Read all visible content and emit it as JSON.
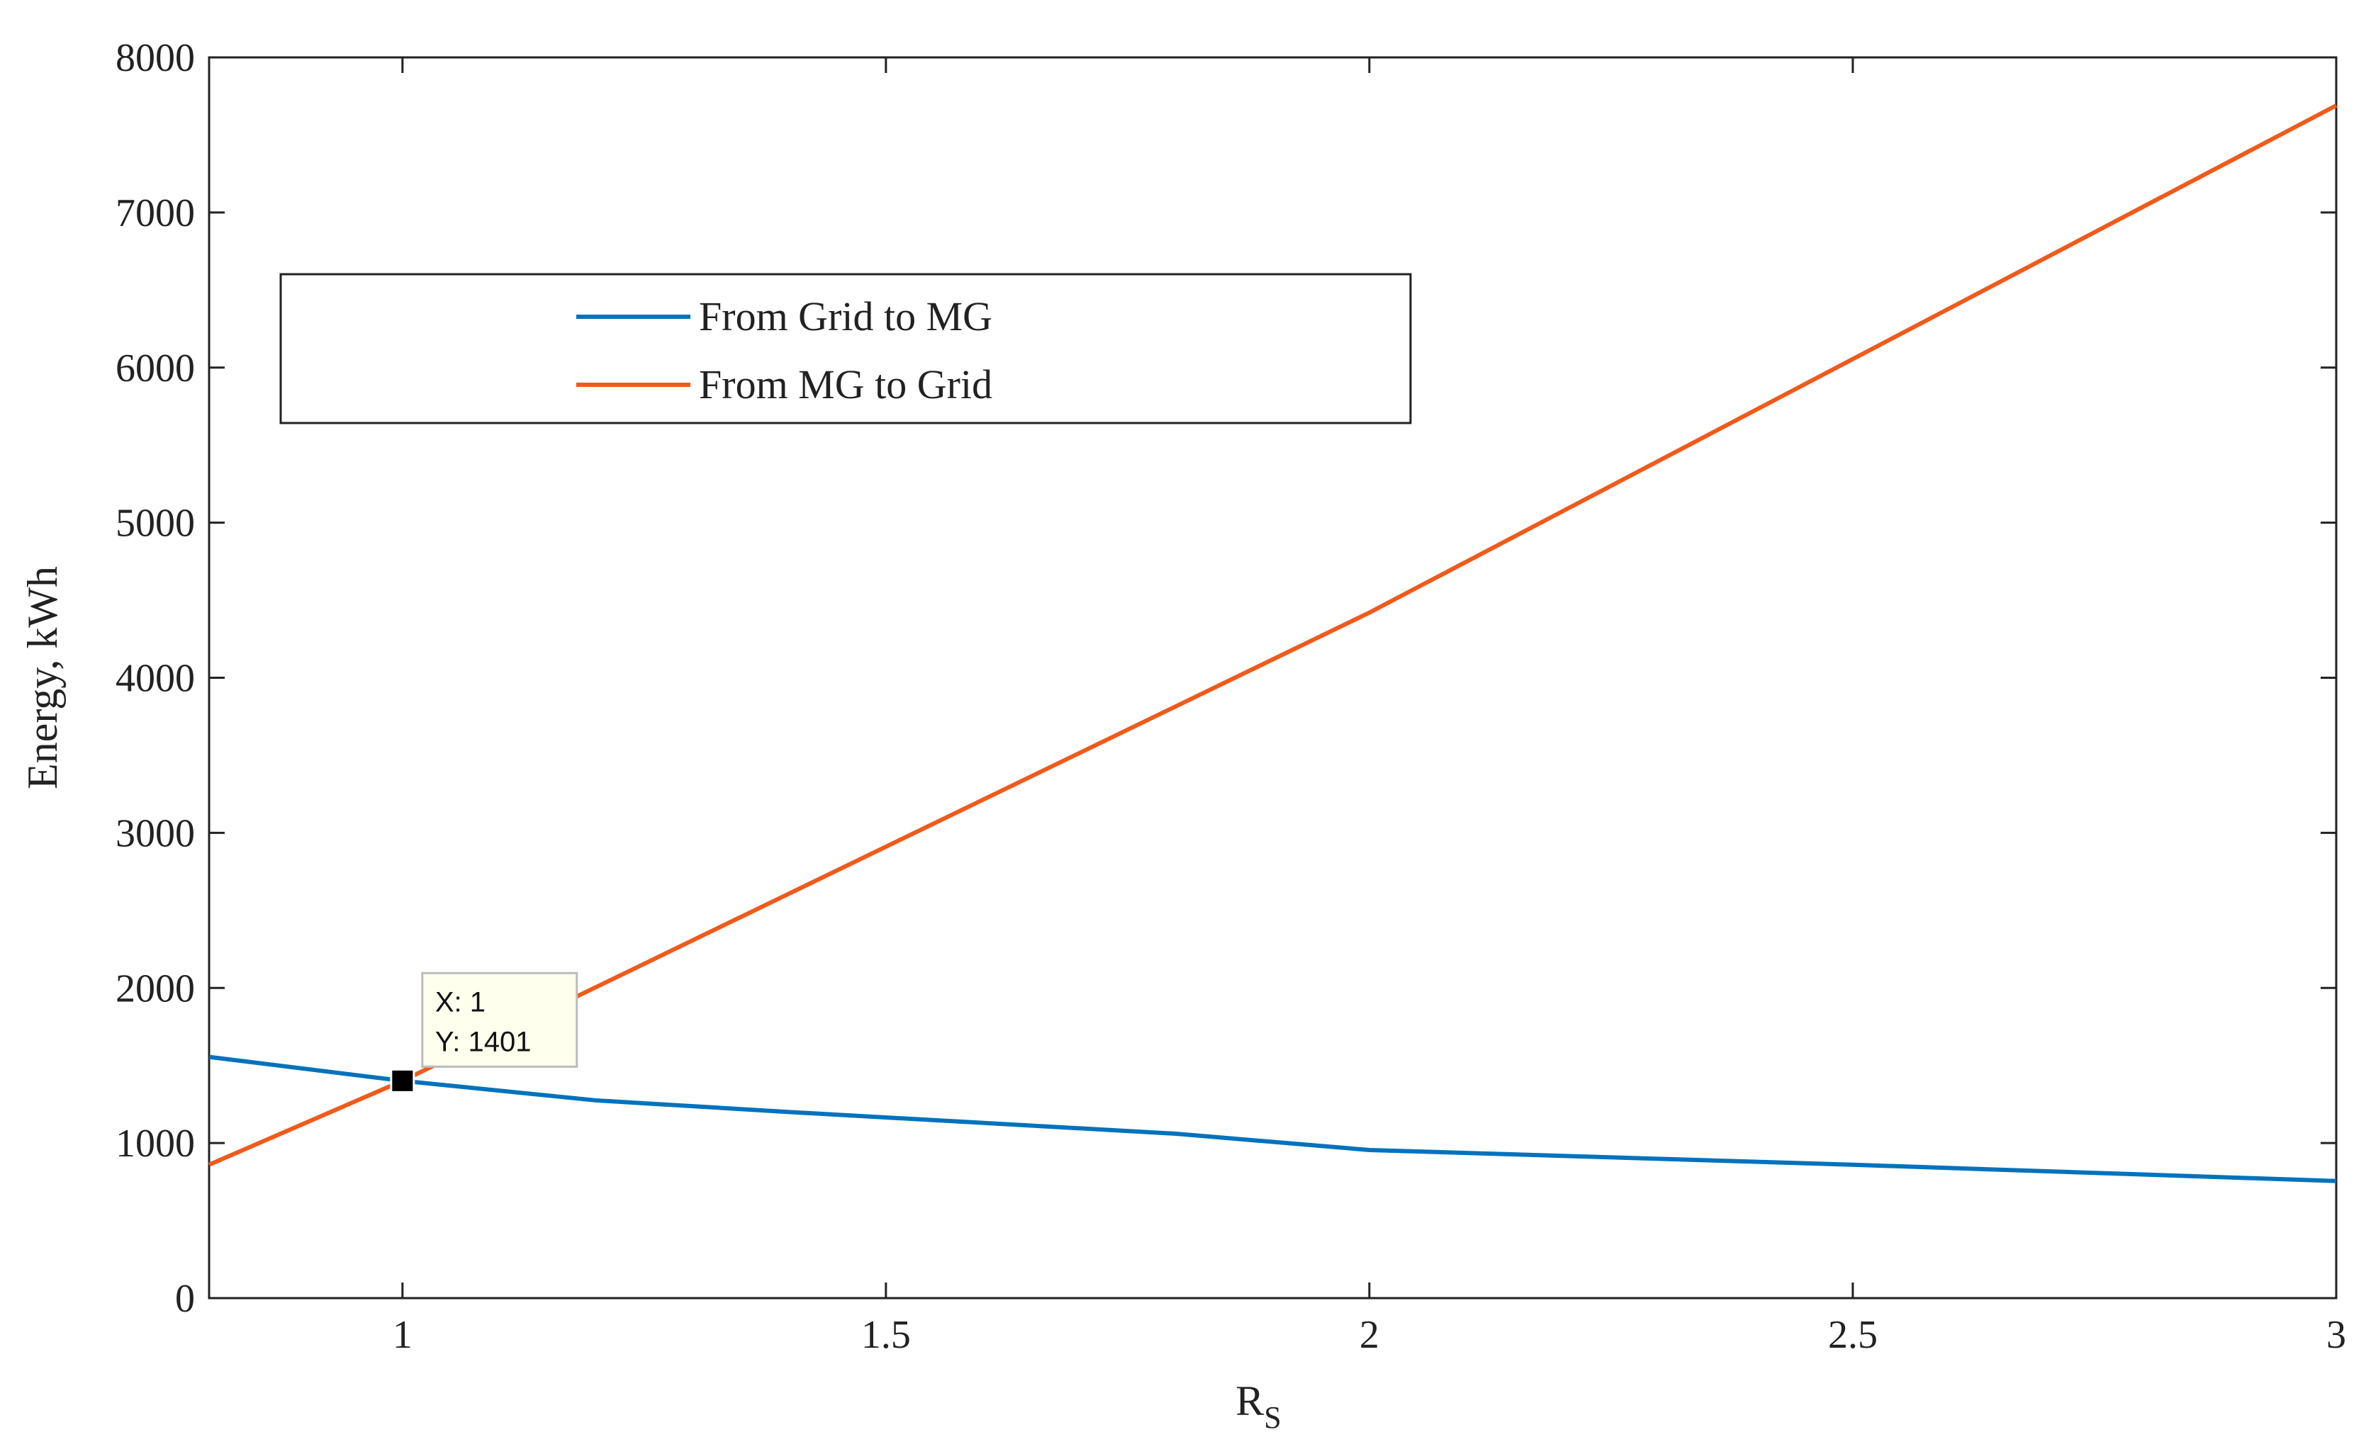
{
  "chart_data": {
    "type": "line",
    "x_label": {
      "base": "R",
      "sub": "S"
    },
    "y_label": "Energy, kWh",
    "xlim": [
      0.8,
      3
    ],
    "xticks": [
      1,
      1.5,
      2,
      2.5,
      3
    ],
    "ylim": [
      0,
      8000
    ],
    "yticks": [
      0,
      1000,
      2000,
      3000,
      4000,
      5000,
      6000,
      7000,
      8000
    ],
    "legend": "upper left",
    "series": [
      {
        "name": "From Grid to MG",
        "color": "#0072bd",
        "x": [
          0.8,
          1,
          1.2,
          1.4,
          1.6,
          1.8,
          2,
          2.5,
          3
        ],
        "values": [
          1555,
          1401,
          1275,
          1200,
          1130,
          1060,
          955,
          860,
          755
        ]
      },
      {
        "name": "From MG to Grid",
        "color": "#f05a1a",
        "x": [
          0.8,
          1,
          2,
          3
        ],
        "values": [
          860,
          1401,
          4420,
          7690
        ]
      }
    ],
    "annotation": {
      "x": 1,
      "y": 1401,
      "lines": [
        "X: 1",
        "Y: 1401"
      ]
    }
  }
}
